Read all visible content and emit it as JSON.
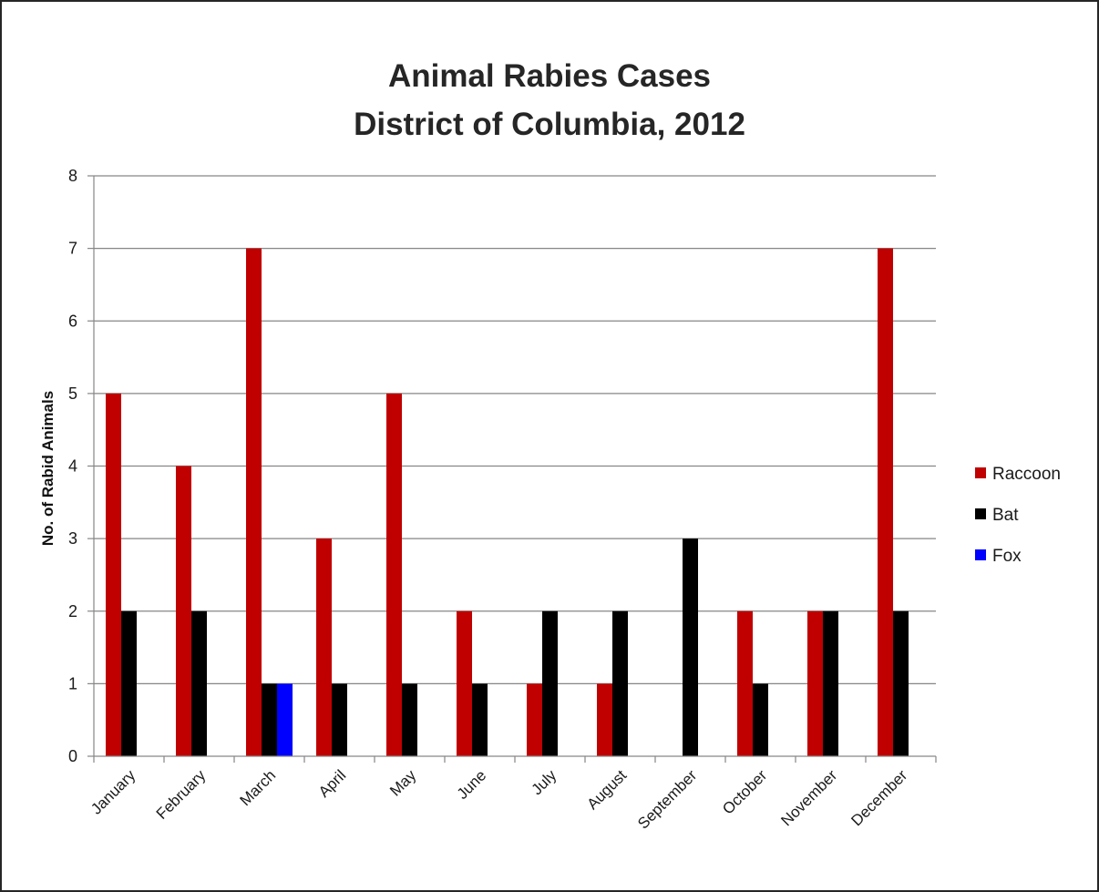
{
  "chart_data": {
    "type": "bar",
    "title_lines": [
      "Animal Rabies Cases",
      "District of Columbia, 2012"
    ],
    "ylabel": "No. of Rabid Animals",
    "xlabel": "",
    "ylim": [
      0,
      8
    ],
    "yticks": [
      "0",
      "1",
      "2",
      "3",
      "4",
      "5",
      "6",
      "7",
      "8"
    ],
    "grid": true,
    "legend_position": "right",
    "categories": [
      "January",
      "February",
      "March",
      "April",
      "May",
      "June",
      "July",
      "August",
      "September",
      "October",
      "November",
      "December"
    ],
    "series": [
      {
        "name": "Raccoon",
        "color": "#c00000",
        "values": [
          5,
          4,
          7,
          3,
          5,
          2,
          1,
          1,
          0,
          2,
          2,
          7
        ]
      },
      {
        "name": "Bat",
        "color": "#000000",
        "values": [
          2,
          2,
          1,
          1,
          1,
          1,
          2,
          2,
          3,
          1,
          2,
          2
        ]
      },
      {
        "name": "Fox",
        "color": "#0000ff",
        "values": [
          0,
          0,
          1,
          0,
          0,
          0,
          0,
          0,
          0,
          0,
          0,
          0
        ]
      }
    ]
  }
}
